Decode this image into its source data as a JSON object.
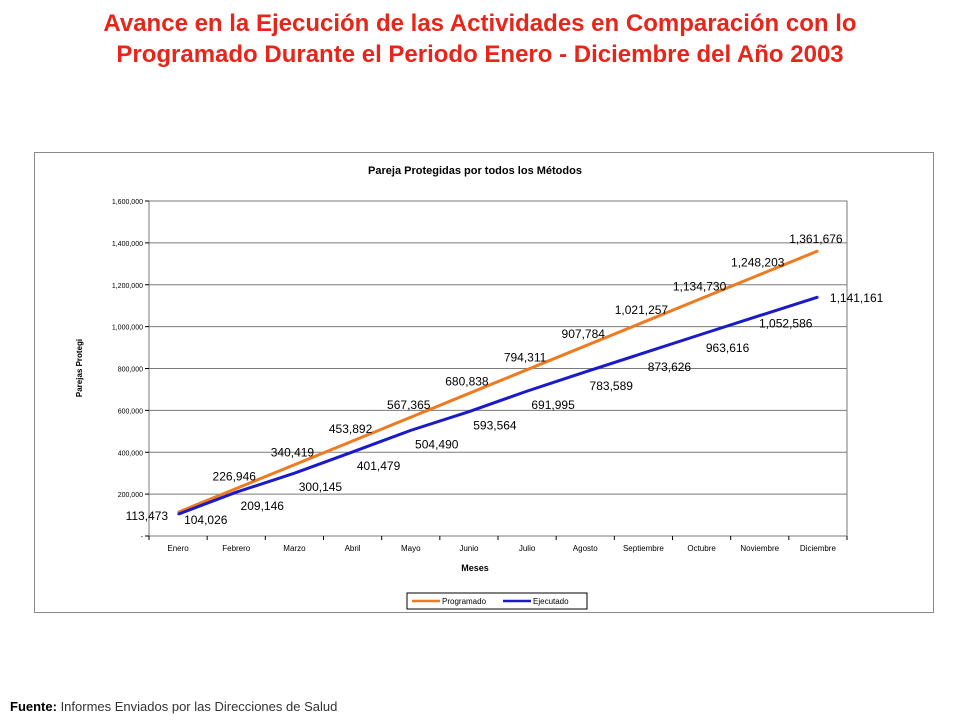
{
  "slide": {
    "title_line1": "Avance en la Ejecución de las Actividades en Comparación con lo",
    "title_line2": "Programado Durante el Periodo Enero - Diciembre del Año 2003"
  },
  "footer": {
    "label": "Fuente:",
    "text": " Informes Enviados por las Direcciones de Salud"
  },
  "colors": {
    "title": "#e8251a",
    "programado": "#ee7b21",
    "ejecutado": "#1a1ac8",
    "grid": "#7a7a7a"
  },
  "chart_data": {
    "type": "line",
    "title": "Pareja Protegidas por todos los Métodos",
    "xlabel": "Meses",
    "ylabel": "Parejas Protegi",
    "ylim": [
      0,
      1600000
    ],
    "yticks": [
      0,
      200000,
      400000,
      600000,
      800000,
      1000000,
      1200000,
      1400000,
      1600000
    ],
    "ytick_labels": [
      "-",
      "200,000",
      "400,000",
      "600,000",
      "800,000",
      "1,000,000",
      "1,200,000",
      "1,400,000",
      "1,600,000"
    ],
    "grid": true,
    "legend_position": "bottom",
    "categories": [
      "Enero",
      "Febrero",
      "Marzo",
      "Abril",
      "Mayo",
      "Junio",
      "Julio",
      "Agosto",
      "Septiembre",
      "Octubre",
      "Noviembre",
      "Diciembre"
    ],
    "series": [
      {
        "name": "Programado",
        "color": "#ee7b21",
        "values": [
          113473,
          226946,
          340419,
          453892,
          567365,
          680838,
          794311,
          907784,
          1021257,
          1134730,
          1248203,
          1361676
        ],
        "labels": [
          "113,473",
          "226,946",
          "340,419",
          "453,892",
          "567,365",
          "680,838",
          "794,311",
          "907,784",
          "1,021,257",
          "1,134,730",
          "1,248,203",
          "1,361,676"
        ]
      },
      {
        "name": "Ejecutado",
        "color": "#1a1ac8",
        "values": [
          104026,
          209146,
          300145,
          401479,
          504490,
          593564,
          691995,
          783589,
          873626,
          963616,
          1052586,
          1141161
        ],
        "labels": [
          "104,026",
          "209,146",
          "300,145",
          "401,479",
          "504,490",
          "593,564",
          "691,995",
          "783,589",
          "873,626",
          "963,616",
          "1,052,586",
          "1,141,161"
        ]
      }
    ]
  }
}
